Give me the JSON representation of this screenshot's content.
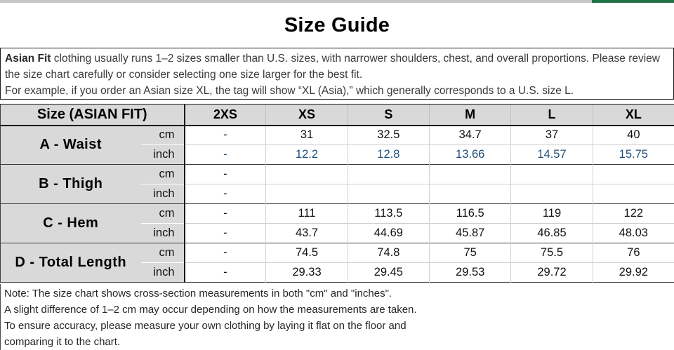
{
  "meta": {
    "title": "Size Guide"
  },
  "top_bar": {
    "gray_color": "#c6c6c6",
    "green_color": "#217346"
  },
  "intro": {
    "lead_bold": "Asian Fit",
    "lead_rest": " clothing usually runs 1–2 sizes smaller than U.S. sizes, with narrower shoulders, chest, and overall proportions. Please review the size chart carefully or consider selecting one size larger for the best fit.",
    "example_line": "For example, if you order an Asian size XL, the tag will show “XL (Asia),” which generally corresponds to a U.S. size L."
  },
  "table": {
    "corner_header": "Size (ASIAN FIT)",
    "size_headers": [
      "2XS",
      "XS",
      "S",
      "M",
      "L",
      "XL"
    ],
    "unit_labels": {
      "cm": "cm",
      "inch": "inch"
    },
    "groups": [
      {
        "label": "A - Waist",
        "cm": [
          "-",
          "31",
          "32.5",
          "34.7",
          "37",
          "40"
        ],
        "inch": [
          "-",
          "12.2",
          "12.8",
          "13.66",
          "14.57",
          "15.75"
        ],
        "inch_color": "blue"
      },
      {
        "label": "B - Thigh",
        "cm": [
          "-",
          "",
          "",
          "",
          "",
          ""
        ],
        "inch": [
          "-",
          "",
          "",
          "",
          "",
          ""
        ]
      },
      {
        "label": "C - Hem",
        "cm": [
          "-",
          "111",
          "113.5",
          "116.5",
          "119",
          "122"
        ],
        "inch": [
          "-",
          "43.7",
          "44.69",
          "45.87",
          "46.85",
          "48.03"
        ]
      },
      {
        "label": "D - Total Length",
        "cm": [
          "-",
          "74.5",
          "74.8",
          "75",
          "75.5",
          "76"
        ],
        "inch": [
          "-",
          "29.33",
          "29.45",
          "29.53",
          "29.72",
          "29.92"
        ]
      }
    ]
  },
  "notes": [
    "Note: The size chart shows cross-section measurements in both \"cm\" and \"inches\".",
    "A slight difference of 1–2 cm may occur depending on how the measurements are taken.",
    "To ensure accuracy, please measure your own clothing by laying it flat on the floor and comparing it to the chart."
  ],
  "colors": {
    "accent_blue": "#1f4e79",
    "header_gray": "#d9d9d9",
    "brand_green": "#217346"
  }
}
